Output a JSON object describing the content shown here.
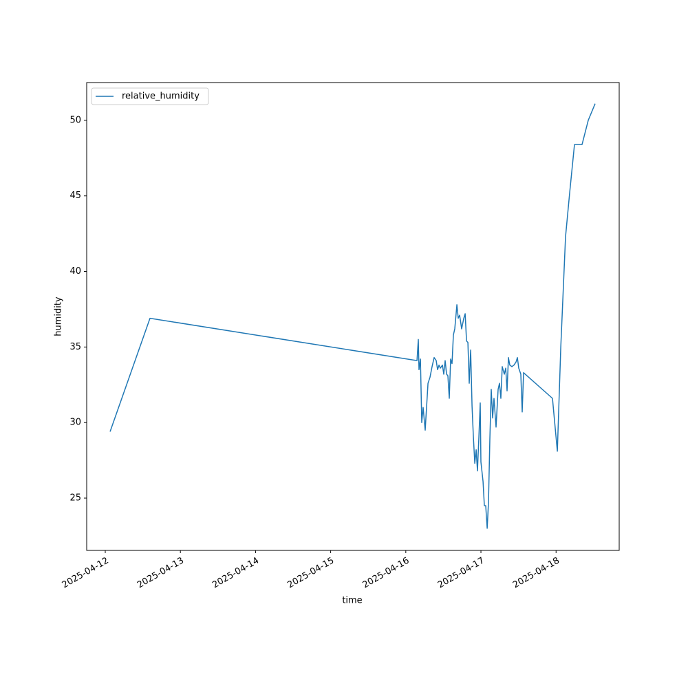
{
  "chart_data": {
    "type": "line",
    "xlabel": "time",
    "ylabel": "humidity",
    "x": [
      "2025-04-12 01:32",
      "2025-04-12 14:17",
      "2025-04-16 03:34",
      "2025-04-16 04:00",
      "2025-04-16 04:13",
      "2025-04-16 04:40",
      "2025-04-16 05:06",
      "2025-04-16 05:32",
      "2025-04-16 06:12",
      "2025-04-16 07:05",
      "2025-04-16 07:44",
      "2025-04-16 08:24",
      "2025-04-16 09:03",
      "2025-04-16 09:43",
      "2025-04-16 10:09",
      "2025-04-16 10:36",
      "2025-04-16 11:02",
      "2025-04-16 11:42",
      "2025-04-16 12:08",
      "2025-04-16 12:34",
      "2025-04-16 13:01",
      "2025-04-16 13:27",
      "2025-04-16 13:53",
      "2025-04-16 14:20",
      "2025-04-16 14:46",
      "2025-04-16 15:12",
      "2025-04-16 15:39",
      "2025-04-16 16:19",
      "2025-04-16 16:45",
      "2025-04-16 17:12",
      "2025-04-16 17:51",
      "2025-04-16 18:31",
      "2025-04-16 18:57",
      "2025-04-16 19:24",
      "2025-04-16 19:50",
      "2025-04-16 20:16",
      "2025-04-16 20:43",
      "2025-04-16 21:09",
      "2025-04-16 21:35",
      "2025-04-16 22:02",
      "2025-04-16 22:28",
      "2025-04-16 22:54",
      "2025-04-16 23:21",
      "2025-04-16 23:47",
      "2025-04-17 00:00",
      "2025-04-17 00:40",
      "2025-04-17 01:06",
      "2025-04-17 01:32",
      "2025-04-17 01:59",
      "2025-04-17 02:25",
      "2025-04-17 02:51",
      "2025-04-17 03:18",
      "2025-04-17 03:44",
      "2025-04-17 04:10",
      "2025-04-17 04:50",
      "2025-04-17 05:29",
      "2025-04-17 05:56",
      "2025-04-17 06:22",
      "2025-04-17 06:48",
      "2025-04-17 07:28",
      "2025-04-17 07:55",
      "2025-04-17 08:21",
      "2025-04-17 08:47",
      "2025-04-17 09:14",
      "2025-04-17 09:53",
      "2025-04-17 10:33",
      "2025-04-17 11:12",
      "2025-04-17 11:38",
      "2025-04-17 12:05",
      "2025-04-17 12:44",
      "2025-04-17 13:11",
      "2025-04-17 13:37",
      "2025-04-17 22:51",
      "2025-04-18 00:24",
      "2025-04-18 01:30",
      "2025-04-18 03:02",
      "2025-04-18 04:21",
      "2025-04-18 05:53",
      "2025-04-18 08:18",
      "2025-04-18 10:17",
      "2025-04-18 12:29"
    ],
    "series": [
      {
        "name": "relative_humidity",
        "color": "#1f77b4",
        "values": [
          29.4,
          36.9,
          34.1,
          35.5,
          33.5,
          34.2,
          30.0,
          31.0,
          29.5,
          32.6,
          33.0,
          33.7,
          34.3,
          34.1,
          33.5,
          33.8,
          33.6,
          33.8,
          33.2,
          34.1,
          33.2,
          33.1,
          31.6,
          34.2,
          33.9,
          35.8,
          36.2,
          37.8,
          36.9,
          37.1,
          36.2,
          36.9,
          37.2,
          35.4,
          35.3,
          32.6,
          34.8,
          31.1,
          29.1,
          27.3,
          28.2,
          26.8,
          29.1,
          31.3,
          27.4,
          26.1,
          24.5,
          24.5,
          23.0,
          24.7,
          28.9,
          32.2,
          30.3,
          31.6,
          29.7,
          32.2,
          32.6,
          31.6,
          33.7,
          33.2,
          33.6,
          32.1,
          34.3,
          33.8,
          33.7,
          33.8,
          34.0,
          34.3,
          33.6,
          33.2,
          30.7,
          33.3,
          31.6,
          28.1,
          35.0,
          42.3,
          45.2,
          48.4,
          48.4,
          50.0,
          51.1
        ]
      }
    ],
    "xlim": [
      "2025-04-11 18:04",
      "2025-04-18 20:10"
    ],
    "xticks": [
      "2025-04-12",
      "2025-04-13",
      "2025-04-14",
      "2025-04-15",
      "2025-04-16",
      "2025-04-17",
      "2025-04-18"
    ],
    "ylim": [
      21.54,
      52.5
    ],
    "yticks": [
      25,
      30,
      35,
      40,
      45,
      50
    ],
    "legend": "upper left"
  }
}
